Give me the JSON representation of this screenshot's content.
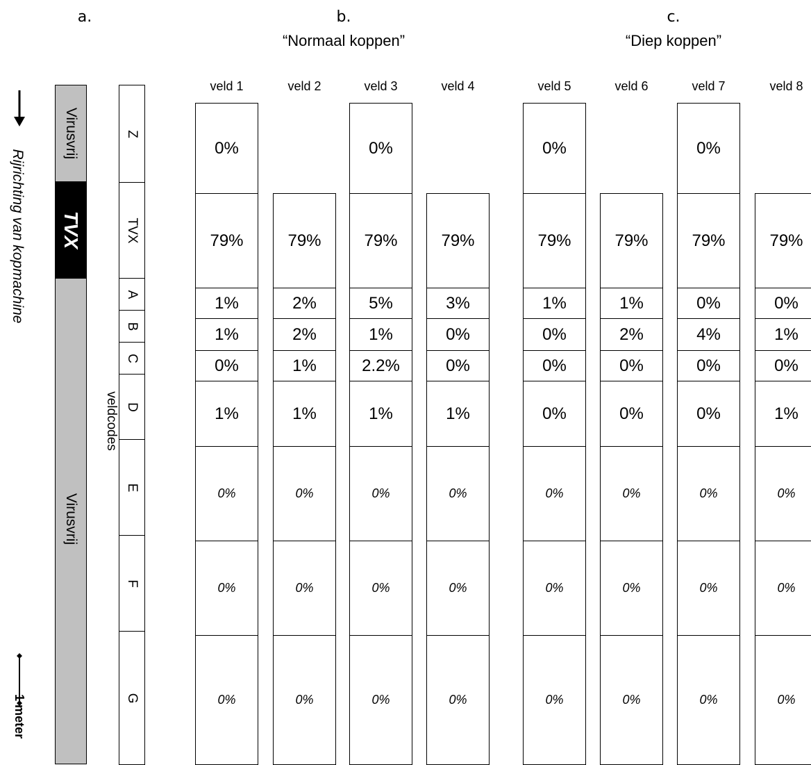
{
  "headers": {
    "a": "a.",
    "b": "b.",
    "b_title": "“Normaal koppen”",
    "c": "c.",
    "c_title": "“Diep koppen”"
  },
  "left": {
    "direction_label": "Rijrichting van kopmachine",
    "scale_label": "1 meter"
  },
  "strip": {
    "top": "Virusvrij",
    "middle": "TVX",
    "bottom": "Virusvrij",
    "colors": {
      "gray": "#c0c0c0",
      "black": "#000000"
    }
  },
  "veldcodes": {
    "label": "veldcodes",
    "codes": [
      "Z",
      "TVX",
      "A",
      "B",
      "C",
      "D",
      "E",
      "F",
      "G"
    ]
  },
  "fields": [
    {
      "label": "veld 1",
      "values": [
        "0%",
        "79%",
        "1%",
        "1%",
        "0%",
        "1%",
        "0%",
        "0%",
        "0%"
      ]
    },
    {
      "label": "veld 2",
      "values": [
        "",
        "79%",
        "2%",
        "2%",
        "1%",
        "1%",
        "0%",
        "0%",
        "0%"
      ]
    },
    {
      "label": "veld 3",
      "values": [
        "0%",
        "79%",
        "5%",
        "1%",
        "2.2%",
        "1%",
        "0%",
        "0%",
        "0%"
      ]
    },
    {
      "label": "veld 4",
      "values": [
        "",
        "79%",
        "3%",
        "0%",
        "0%",
        "1%",
        "0%",
        "0%",
        "0%"
      ]
    },
    {
      "label": "veld 5",
      "values": [
        "0%",
        "79%",
        "1%",
        "0%",
        "0%",
        "0%",
        "0%",
        "0%",
        "0%"
      ]
    },
    {
      "label": "veld 6",
      "values": [
        "",
        "79%",
        "1%",
        "2%",
        "0%",
        "0%",
        "0%",
        "0%",
        "0%"
      ]
    },
    {
      "label": "veld 7",
      "values": [
        "0%",
        "79%",
        "0%",
        "4%",
        "0%",
        "0%",
        "0%",
        "0%",
        "0%"
      ]
    },
    {
      "label": "veld 8",
      "values": [
        "",
        "79%",
        "0%",
        "1%",
        "0%",
        "1%",
        "0%",
        "0%",
        "0%"
      ]
    }
  ]
}
